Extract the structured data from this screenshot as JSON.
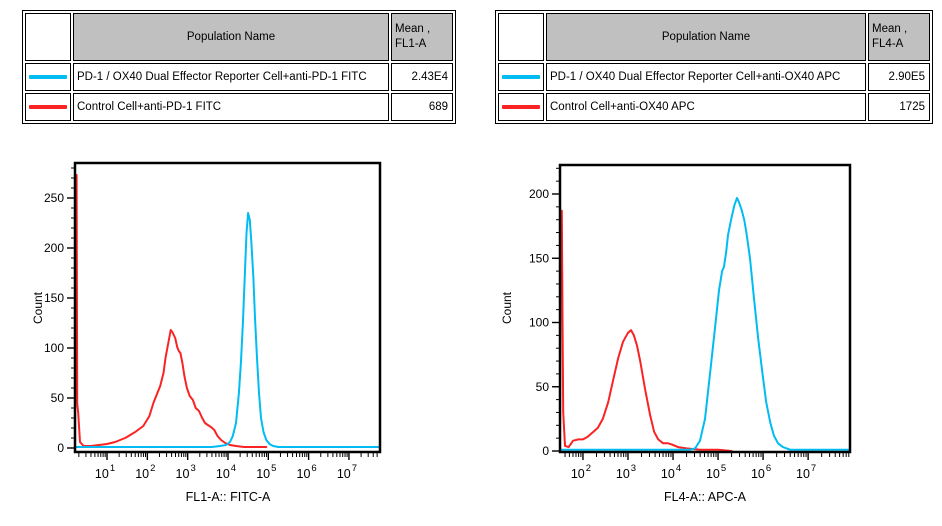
{
  "colors": {
    "cyan": "#00BCF2",
    "red": "#FA2323",
    "table_header_bg": "#C0C0C0",
    "axis": "#000000"
  },
  "tables": [
    {
      "header": {
        "population": "Population Name",
        "mean_line1": "Mean ,",
        "mean_line2": "FL1-A"
      },
      "rows": [
        {
          "color": "#00BCF2",
          "population": "PD-1 / OX40 Dual Effector Reporter Cell+anti-PD-1 FITC",
          "mean": "2.43E4"
        },
        {
          "color": "#FA2323",
          "population": "Control Cell+anti-PD-1 FITC",
          "mean": "689"
        }
      ]
    },
    {
      "header": {
        "population": "Population Name",
        "mean_line1": "Mean ,",
        "mean_line2": "FL4-A"
      },
      "rows": [
        {
          "color": "#00BCF2",
          "population": "PD-1 / OX40 Dual Effector Reporter Cell+anti-OX40 APC",
          "mean": "2.90E5"
        },
        {
          "color": "#FA2323",
          "population": "Control Cell+anti-OX40 APC",
          "mean": "1725"
        }
      ]
    }
  ],
  "chart_data": [
    {
      "type": "line",
      "title": "",
      "xlabel": "FL1-A:: FITC-A",
      "ylabel": "Count",
      "x_scale": "log10",
      "xlim_log": [
        0.206,
        7.77
      ],
      "x_ticks_exponents": [
        1,
        2,
        3,
        4,
        5,
        6,
        7
      ],
      "ylim": [
        0,
        285
      ],
      "y_ticks": [
        0,
        50,
        100,
        150,
        200,
        250
      ],
      "y_minor_step": 10,
      "grid": false,
      "legend": "none",
      "series": [
        {
          "name": "Control Cell+anti-PD-1 FITC",
          "color": "#FA2323",
          "points_log10x_count": [
            [
              0.206,
              0
            ],
            [
              0.215,
              273
            ],
            [
              0.245,
              273
            ],
            [
              0.26,
              45
            ],
            [
              0.285,
              35
            ],
            [
              0.33,
              6
            ],
            [
              0.42,
              2
            ],
            [
              0.6,
              2
            ],
            [
              0.8,
              3
            ],
            [
              1.0,
              4
            ],
            [
              1.2,
              6
            ],
            [
              1.45,
              10
            ],
            [
              1.7,
              16
            ],
            [
              1.9,
              22
            ],
            [
              2.05,
              32
            ],
            [
              2.15,
              45
            ],
            [
              2.25,
              55
            ],
            [
              2.32,
              62
            ],
            [
              2.4,
              75
            ],
            [
              2.45,
              90
            ],
            [
              2.52,
              105
            ],
            [
              2.58,
              118
            ],
            [
              2.62,
              116
            ],
            [
              2.69,
              110
            ],
            [
              2.74,
              101
            ],
            [
              2.78,
              97
            ],
            [
              2.82,
              95
            ],
            [
              2.87,
              85
            ],
            [
              2.92,
              72
            ],
            [
              2.98,
              60
            ],
            [
              3.05,
              52
            ],
            [
              3.13,
              48
            ],
            [
              3.2,
              40
            ],
            [
              3.28,
              37
            ],
            [
              3.36,
              30
            ],
            [
              3.43,
              25
            ],
            [
              3.5,
              23
            ],
            [
              3.58,
              21
            ],
            [
              3.66,
              18
            ],
            [
              3.74,
              12
            ],
            [
              3.83,
              8
            ],
            [
              3.93,
              5
            ],
            [
              4.05,
              3
            ],
            [
              4.2,
              2
            ],
            [
              4.4,
              1
            ],
            [
              4.7,
              1
            ],
            [
              4.95,
              1
            ]
          ]
        },
        {
          "name": "PD-1 / OX40 Dual Effector Reporter Cell+anti-PD-1 FITC",
          "color": "#00BCF2",
          "points_log10x_count": [
            [
              0.206,
              1
            ],
            [
              1.0,
              1
            ],
            [
              2.0,
              1
            ],
            [
              3.0,
              1
            ],
            [
              3.6,
              1
            ],
            [
              3.8,
              2
            ],
            [
              3.95,
              3
            ],
            [
              4.05,
              6
            ],
            [
              4.12,
              12
            ],
            [
              4.2,
              25
            ],
            [
              4.27,
              55
            ],
            [
              4.32,
              85
            ],
            [
              4.37,
              125
            ],
            [
              4.42,
              175
            ],
            [
              4.46,
              215
            ],
            [
              4.5,
              235
            ],
            [
              4.54,
              228
            ],
            [
              4.58,
              205
            ],
            [
              4.63,
              170
            ],
            [
              4.67,
              130
            ],
            [
              4.72,
              90
            ],
            [
              4.77,
              55
            ],
            [
              4.82,
              30
            ],
            [
              4.88,
              16
            ],
            [
              4.95,
              8
            ],
            [
              5.03,
              4
            ],
            [
              5.12,
              2
            ],
            [
              5.25,
              1
            ],
            [
              6.0,
              1
            ],
            [
              7.0,
              1
            ],
            [
              7.77,
              1
            ]
          ]
        }
      ]
    },
    {
      "type": "line",
      "title": "",
      "xlabel": "FL4-A:: APC-A",
      "ylabel": "Count",
      "x_scale": "log10",
      "xlim_log": [
        1.49,
        7.93
      ],
      "x_ticks_exponents": [
        2,
        3,
        4,
        5,
        6,
        7
      ],
      "ylim": [
        0,
        222
      ],
      "y_ticks": [
        0,
        50,
        100,
        150,
        200
      ],
      "y_minor_step": 10,
      "grid": false,
      "legend": "none",
      "series": [
        {
          "name": "Control Cell+anti-OX40 APC",
          "color": "#FA2323",
          "points_log10x_count": [
            [
              1.49,
              0
            ],
            [
              1.5,
              187
            ],
            [
              1.53,
              187
            ],
            [
              1.545,
              105
            ],
            [
              1.56,
              30
            ],
            [
              1.6,
              4
            ],
            [
              1.68,
              3
            ],
            [
              1.78,
              8
            ],
            [
              1.9,
              9
            ],
            [
              2.0,
              9
            ],
            [
              2.1,
              11
            ],
            [
              2.2,
              14
            ],
            [
              2.33,
              18
            ],
            [
              2.44,
              25
            ],
            [
              2.56,
              38
            ],
            [
              2.67,
              55
            ],
            [
              2.78,
              72
            ],
            [
              2.89,
              85
            ],
            [
              3.0,
              92
            ],
            [
              3.07,
              94
            ],
            [
              3.13,
              90
            ],
            [
              3.2,
              82
            ],
            [
              3.27,
              70
            ],
            [
              3.38,
              48
            ],
            [
              3.49,
              28
            ],
            [
              3.58,
              15
            ],
            [
              3.67,
              9
            ],
            [
              3.78,
              6
            ],
            [
              3.89,
              6
            ],
            [
              3.98,
              5
            ],
            [
              4.11,
              3
            ],
            [
              4.3,
              2
            ],
            [
              4.6,
              1
            ],
            [
              5.0,
              1
            ],
            [
              5.3,
              0
            ]
          ]
        },
        {
          "name": "PD-1 / OX40 Dual Effector Reporter Cell+anti-OX40 APC",
          "color": "#00BCF2",
          "points_log10x_count": [
            [
              1.49,
              1
            ],
            [
              2.5,
              1
            ],
            [
              3.5,
              1
            ],
            [
              4.2,
              1
            ],
            [
              4.38,
              1
            ],
            [
              4.49,
              2
            ],
            [
              4.6,
              8
            ],
            [
              4.71,
              25
            ],
            [
              4.82,
              60
            ],
            [
              4.93,
              95
            ],
            [
              5.02,
              125
            ],
            [
              5.09,
              140
            ],
            [
              5.13,
              143
            ],
            [
              5.18,
              155
            ],
            [
              5.22,
              168
            ],
            [
              5.29,
              180
            ],
            [
              5.36,
              191
            ],
            [
              5.42,
              197
            ],
            [
              5.46,
              194
            ],
            [
              5.52,
              188
            ],
            [
              5.58,
              180
            ],
            [
              5.63,
              170
            ],
            [
              5.71,
              150
            ],
            [
              5.8,
              118
            ],
            [
              5.89,
              88
            ],
            [
              5.98,
              62
            ],
            [
              6.07,
              38
            ],
            [
              6.16,
              22
            ],
            [
              6.24,
              12
            ],
            [
              6.33,
              6
            ],
            [
              6.44,
              3
            ],
            [
              6.6,
              1
            ],
            [
              7.0,
              1
            ],
            [
              7.5,
              1
            ],
            [
              7.93,
              1
            ]
          ]
        }
      ]
    }
  ]
}
